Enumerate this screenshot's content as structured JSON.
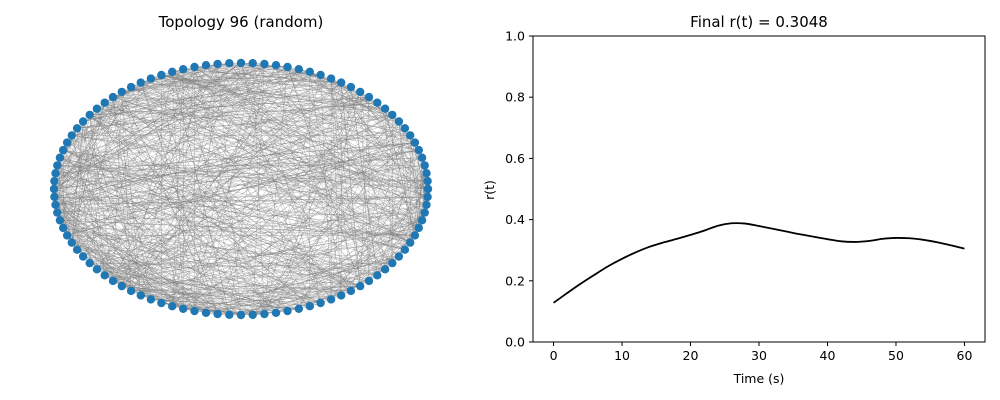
{
  "chart_data": [
    {
      "type": "network",
      "title": "Topology 96 (random)",
      "layout": "circular",
      "node_count": 100,
      "node_color": "#1f77b4",
      "edge_color": "#808080"
    },
    {
      "type": "line",
      "title": "Final r(t) = 0.3048",
      "xlabel": "Time (s)",
      "ylabel": "r(t)",
      "xlim": [
        -3,
        63
      ],
      "ylim": [
        0.0,
        1.0
      ],
      "xticks": [
        0,
        10,
        20,
        30,
        40,
        50,
        60
      ],
      "yticks": [
        0.0,
        0.2,
        0.4,
        0.6,
        0.8,
        1.0
      ],
      "grid": false,
      "series": [
        {
          "color": "#000000",
          "x": [
            0,
            2,
            4,
            6,
            8,
            10,
            12,
            14,
            16,
            18,
            20,
            22,
            24,
            26,
            28,
            30,
            32,
            34,
            36,
            38,
            40,
            42,
            44,
            46,
            48,
            50,
            52,
            54,
            56,
            58,
            60
          ],
          "y": [
            0.128,
            0.16,
            0.191,
            0.22,
            0.248,
            0.272,
            0.293,
            0.311,
            0.325,
            0.337,
            0.35,
            0.364,
            0.38,
            0.388,
            0.387,
            0.379,
            0.37,
            0.361,
            0.352,
            0.344,
            0.336,
            0.329,
            0.327,
            0.33,
            0.337,
            0.34,
            0.339,
            0.334,
            0.326,
            0.316,
            0.305
          ]
        }
      ]
    }
  ]
}
